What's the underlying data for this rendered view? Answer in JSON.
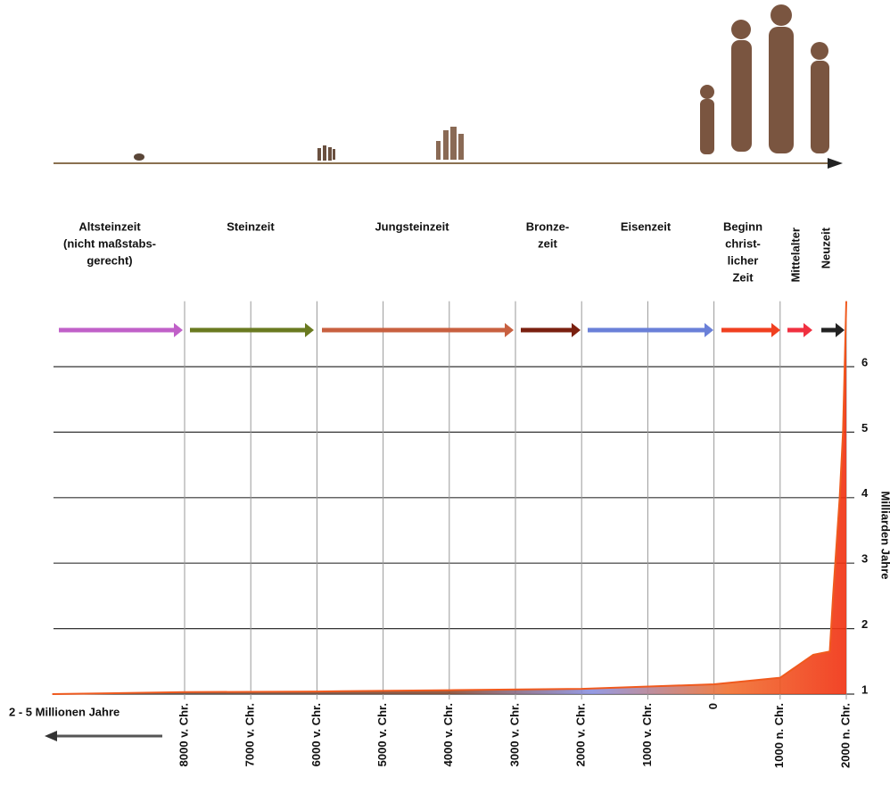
{
  "chart_data": {
    "type": "area",
    "y_label": "Milliarden Jahre",
    "note": "2 -  5 Millionen Jahre",
    "x": [
      -10000,
      -8000,
      -6000,
      -4000,
      -2000,
      0,
      1000,
      1500,
      1750,
      1800,
      1900,
      1950,
      2000
    ],
    "values": [
      1,
      1.03,
      1.04,
      1.06,
      1.08,
      1.15,
      1.25,
      1.6,
      1.65,
      2.5,
      4,
      5,
      7
    ],
    "color": "#f05a1e",
    "xlim": [
      -10000,
      2000
    ],
    "xticks": [
      {
        "value": -8000,
        "label": "8000 v. Chr."
      },
      {
        "value": -7000,
        "label": "7000 v. Chr."
      },
      {
        "value": -6000,
        "label": "6000 v. Chr."
      },
      {
        "value": -5000,
        "label": "5000 v. Chr."
      },
      {
        "value": -4000,
        "label": "4000 v. Chr."
      },
      {
        "value": -3000,
        "label": "3000 v. Chr."
      },
      {
        "value": -2000,
        "label": "2000 v. Chr."
      },
      {
        "value": -1000,
        "label": "1000 v. Chr."
      },
      0,
      {
        "value": 1000,
        "label": "1000 n. Chr."
      },
      {
        "value": 2000,
        "label": "2000 n. Chr."
      }
    ],
    "ylim": [
      1,
      7
    ],
    "yticks": [
      1,
      2,
      3,
      4,
      5,
      6
    ],
    "grid": true,
    "eras": [
      {
        "lines": [
          "Altsteinzeit",
          "(nicht maßstabs-",
          "gerecht)"
        ],
        "color": "#c060c8"
      },
      {
        "lines": [
          "Steinzeit"
        ],
        "color": "#6a7a20"
      },
      {
        "lines": [
          "Jungsteinzeit"
        ],
        "color": "#c86040"
      },
      {
        "lines": [
          "Bronze-",
          "zeit"
        ],
        "color": "#7a2010"
      },
      {
        "lines": [
          "Eisenzeit"
        ],
        "color": "#6a80d8"
      },
      {
        "lines": [
          "Beginn",
          "christ-",
          "licher",
          "Zeit"
        ],
        "color": "#f04020"
      },
      {
        "lines": [
          "Mittelalter"
        ],
        "color": "#f03040"
      },
      {
        "lines": [
          "Neuzeit"
        ],
        "color": "#222222"
      }
    ]
  }
}
